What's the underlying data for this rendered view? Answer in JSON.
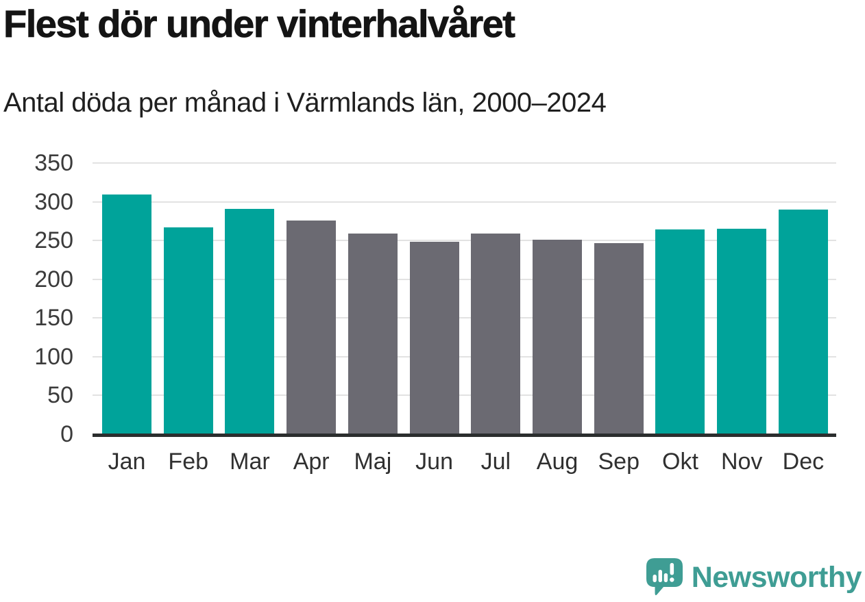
{
  "header": {
    "title": "Flest dör under vinterhalvåret",
    "subtitle": "Antal döda per månad i Värmlands län, 2000–2024"
  },
  "chart_data": {
    "type": "bar",
    "title": "Flest dör under vinterhalvåret",
    "subtitle": "Antal döda per månad i Värmlands län, 2000–2024",
    "categories": [
      "Jan",
      "Feb",
      "Mar",
      "Apr",
      "Maj",
      "Jun",
      "Jul",
      "Aug",
      "Sep",
      "Okt",
      "Nov",
      "Dec"
    ],
    "values": [
      309,
      267,
      291,
      276,
      259,
      248,
      259,
      251,
      247,
      264,
      265,
      290
    ],
    "bar_seasons": [
      "winter",
      "winter",
      "winter",
      "summer",
      "summer",
      "summer",
      "summer",
      "summer",
      "summer",
      "winter",
      "winter",
      "winter"
    ],
    "xlabel": "",
    "ylabel": "",
    "ylim": [
      0,
      350
    ],
    "yticks": [
      0,
      50,
      100,
      150,
      200,
      250,
      300,
      350
    ],
    "grid": "horizontal",
    "legend": "none"
  },
  "colors": {
    "winter_bar": "#00A39A",
    "summer_bar": "#6B6A72",
    "gridline": "#E2E2E2",
    "axis_line": "#2B2E2E",
    "tick_label": "#3B3B3B",
    "title_text": "#141414",
    "logo": "#3F9D94",
    "background": "#FFFFFF"
  },
  "footer": {
    "logo_text": "Newsworthy",
    "logo_icon": "newsworthy-bubble-chart-icon"
  }
}
